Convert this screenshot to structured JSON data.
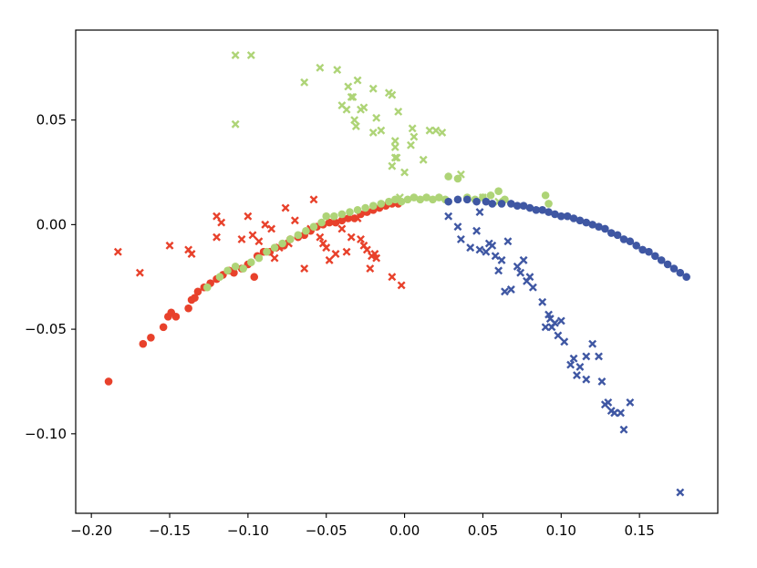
{
  "chart_data": {
    "type": "scatter",
    "title": "",
    "xlabel": "",
    "ylabel": "",
    "xlim": [
      -0.21,
      0.2
    ],
    "ylim": [
      -0.138,
      0.093
    ],
    "grid": false,
    "legend": null,
    "x_ticks": [
      "−0.20",
      "−0.15",
      "−0.10",
      "−0.05",
      "0.00",
      "0.05",
      "0.10",
      "0.15"
    ],
    "y_ticks": [
      "0.05",
      "0.00",
      "−0.05",
      "−0.10"
    ],
    "x_tick_values": [
      -0.2,
      -0.15,
      -0.1,
      -0.05,
      0.0,
      0.05,
      0.1,
      0.15
    ],
    "y_tick_values": [
      0.05,
      0.0,
      -0.05,
      -0.1
    ],
    "series": [
      {
        "color": "#e8412b",
        "marker": "circle",
        "points": [
          [
            -0.189,
            -0.075
          ],
          [
            -0.167,
            -0.057
          ],
          [
            -0.162,
            -0.054
          ],
          [
            -0.154,
            -0.049
          ],
          [
            -0.151,
            -0.044
          ],
          [
            -0.149,
            -0.042
          ],
          [
            -0.146,
            -0.044
          ],
          [
            -0.138,
            -0.04
          ],
          [
            -0.136,
            -0.036
          ],
          [
            -0.134,
            -0.035
          ],
          [
            -0.132,
            -0.032
          ],
          [
            -0.128,
            -0.03
          ],
          [
            -0.124,
            -0.028
          ],
          [
            -0.12,
            -0.026
          ],
          [
            -0.116,
            -0.024
          ],
          [
            -0.112,
            -0.022
          ],
          [
            -0.109,
            -0.023
          ],
          [
            -0.104,
            -0.021
          ],
          [
            -0.1,
            -0.019
          ],
          [
            -0.096,
            -0.025
          ],
          [
            -0.094,
            -0.015
          ],
          [
            -0.09,
            -0.013
          ],
          [
            -0.086,
            -0.013
          ],
          [
            -0.082,
            -0.011
          ],
          [
            -0.077,
            -0.01
          ],
          [
            -0.073,
            -0.007
          ],
          [
            -0.068,
            -0.006
          ],
          [
            -0.064,
            -0.005
          ],
          [
            -0.06,
            -0.003
          ],
          [
            -0.056,
            -0.001
          ],
          [
            -0.052,
            0.0
          ],
          [
            -0.048,
            0.001
          ],
          [
            -0.044,
            0.001
          ],
          [
            -0.04,
            0.002
          ],
          [
            -0.036,
            0.003
          ],
          [
            -0.032,
            0.003
          ],
          [
            -0.028,
            0.005
          ],
          [
            -0.024,
            0.006
          ],
          [
            -0.02,
            0.007
          ],
          [
            -0.016,
            0.008
          ],
          [
            -0.012,
            0.009
          ],
          [
            -0.008,
            0.01
          ],
          [
            -0.004,
            0.01
          ]
        ]
      },
      {
        "color": "#e8412b",
        "marker": "x",
        "points": [
          [
            -0.183,
            -0.013
          ],
          [
            -0.169,
            -0.023
          ],
          [
            -0.15,
            -0.01
          ],
          [
            -0.138,
            -0.012
          ],
          [
            -0.136,
            -0.014
          ],
          [
            -0.12,
            0.004
          ],
          [
            -0.12,
            -0.006
          ],
          [
            -0.117,
            0.001
          ],
          [
            -0.104,
            -0.007
          ],
          [
            -0.1,
            0.004
          ],
          [
            -0.097,
            -0.005
          ],
          [
            -0.093,
            -0.008
          ],
          [
            -0.089,
            0.0
          ],
          [
            -0.085,
            -0.002
          ],
          [
            -0.083,
            -0.016
          ],
          [
            -0.08,
            -0.011
          ],
          [
            -0.076,
            0.008
          ],
          [
            -0.074,
            -0.009
          ],
          [
            -0.07,
            0.002
          ],
          [
            -0.064,
            -0.021
          ],
          [
            -0.06,
            -0.002
          ],
          [
            -0.058,
            0.012
          ],
          [
            -0.054,
            -0.006
          ],
          [
            -0.052,
            -0.009
          ],
          [
            -0.05,
            -0.011
          ],
          [
            -0.048,
            -0.017
          ],
          [
            -0.044,
            -0.014
          ],
          [
            -0.04,
            -0.002
          ],
          [
            -0.037,
            -0.013
          ],
          [
            -0.034,
            -0.006
          ],
          [
            -0.03,
            0.003
          ],
          [
            -0.028,
            -0.007
          ],
          [
            -0.026,
            -0.01
          ],
          [
            -0.024,
            -0.012
          ],
          [
            -0.022,
            -0.021
          ],
          [
            -0.021,
            -0.015
          ],
          [
            -0.019,
            -0.014
          ],
          [
            -0.018,
            -0.016
          ],
          [
            -0.008,
            -0.025
          ],
          [
            -0.002,
            -0.029
          ]
        ]
      },
      {
        "color": "#aed477",
        "marker": "circle",
        "points": [
          [
            -0.126,
            -0.03
          ],
          [
            -0.118,
            -0.025
          ],
          [
            -0.113,
            -0.022
          ],
          [
            -0.108,
            -0.02
          ],
          [
            -0.103,
            -0.021
          ],
          [
            -0.098,
            -0.018
          ],
          [
            -0.093,
            -0.016
          ],
          [
            -0.088,
            -0.013
          ],
          [
            -0.083,
            -0.011
          ],
          [
            -0.078,
            -0.009
          ],
          [
            -0.073,
            -0.007
          ],
          [
            -0.068,
            -0.005
          ],
          [
            -0.063,
            -0.003
          ],
          [
            -0.058,
            -0.001
          ],
          [
            -0.053,
            0.001
          ],
          [
            -0.05,
            0.004
          ],
          [
            -0.045,
            0.004
          ],
          [
            -0.04,
            0.005
          ],
          [
            -0.035,
            0.006
          ],
          [
            -0.03,
            0.007
          ],
          [
            -0.025,
            0.008
          ],
          [
            -0.02,
            0.009
          ],
          [
            -0.015,
            0.01
          ],
          [
            -0.01,
            0.011
          ],
          [
            -0.006,
            0.012
          ],
          [
            -0.002,
            0.011
          ],
          [
            0.002,
            0.012
          ],
          [
            0.006,
            0.013
          ],
          [
            0.01,
            0.012
          ],
          [
            0.014,
            0.013
          ],
          [
            0.018,
            0.012
          ],
          [
            0.022,
            0.013
          ],
          [
            0.026,
            0.012
          ],
          [
            0.028,
            0.023
          ],
          [
            0.034,
            0.022
          ],
          [
            0.04,
            0.013
          ],
          [
            0.045,
            0.012
          ],
          [
            0.05,
            0.013
          ],
          [
            0.055,
            0.014
          ],
          [
            0.06,
            0.016
          ],
          [
            0.064,
            0.012
          ],
          [
            0.09,
            0.014
          ],
          [
            0.092,
            0.01
          ]
        ]
      },
      {
        "color": "#aed477",
        "marker": "x",
        "points": [
          [
            -0.108,
            0.081
          ],
          [
            -0.098,
            0.081
          ],
          [
            -0.108,
            0.048
          ],
          [
            -0.064,
            0.068
          ],
          [
            -0.054,
            0.075
          ],
          [
            -0.043,
            0.074
          ],
          [
            -0.04,
            0.057
          ],
          [
            -0.036,
            0.066
          ],
          [
            -0.037,
            0.055
          ],
          [
            -0.034,
            0.061
          ],
          [
            -0.033,
            0.061
          ],
          [
            -0.032,
            0.05
          ],
          [
            -0.03,
            0.069
          ],
          [
            -0.028,
            0.055
          ],
          [
            -0.031,
            0.047
          ],
          [
            -0.026,
            0.056
          ],
          [
            -0.02,
            0.065
          ],
          [
            -0.018,
            0.051
          ],
          [
            -0.02,
            0.044
          ],
          [
            -0.015,
            0.045
          ],
          [
            -0.01,
            0.063
          ],
          [
            -0.008,
            0.062
          ],
          [
            -0.006,
            0.037
          ],
          [
            -0.006,
            0.04
          ],
          [
            -0.005,
            0.032
          ],
          [
            -0.004,
            0.054
          ],
          [
            -0.006,
            0.032
          ],
          [
            -0.008,
            0.028
          ],
          [
            0.0,
            0.025
          ],
          [
            -0.003,
            0.013
          ],
          [
            0.005,
            0.046
          ],
          [
            0.006,
            0.042
          ],
          [
            0.004,
            0.038
          ],
          [
            0.012,
            0.031
          ],
          [
            0.016,
            0.045
          ],
          [
            0.02,
            0.045
          ],
          [
            0.024,
            0.044
          ],
          [
            0.036,
            0.024
          ],
          [
            0.05,
            0.013
          ],
          [
            0.06,
            0.011
          ]
        ]
      },
      {
        "color": "#3f57a3",
        "marker": "circle",
        "points": [
          [
            0.028,
            0.011
          ],
          [
            0.034,
            0.012
          ],
          [
            0.04,
            0.012
          ],
          [
            0.046,
            0.011
          ],
          [
            0.052,
            0.011
          ],
          [
            0.056,
            0.01
          ],
          [
            0.062,
            0.01
          ],
          [
            0.068,
            0.01
          ],
          [
            0.072,
            0.009
          ],
          [
            0.076,
            0.009
          ],
          [
            0.08,
            0.008
          ],
          [
            0.084,
            0.007
          ],
          [
            0.088,
            0.007
          ],
          [
            0.092,
            0.006
          ],
          [
            0.096,
            0.005
          ],
          [
            0.1,
            0.004
          ],
          [
            0.104,
            0.004
          ],
          [
            0.108,
            0.003
          ],
          [
            0.112,
            0.002
          ],
          [
            0.116,
            0.001
          ],
          [
            0.12,
            0.0
          ],
          [
            0.124,
            -0.001
          ],
          [
            0.128,
            -0.002
          ],
          [
            0.132,
            -0.004
          ],
          [
            0.136,
            -0.005
          ],
          [
            0.14,
            -0.007
          ],
          [
            0.144,
            -0.008
          ],
          [
            0.148,
            -0.01
          ],
          [
            0.152,
            -0.012
          ],
          [
            0.156,
            -0.013
          ],
          [
            0.16,
            -0.015
          ],
          [
            0.164,
            -0.017
          ],
          [
            0.168,
            -0.019
          ],
          [
            0.172,
            -0.021
          ],
          [
            0.176,
            -0.023
          ],
          [
            0.18,
            -0.025
          ]
        ]
      },
      {
        "color": "#3f57a3",
        "marker": "x",
        "points": [
          [
            0.028,
            0.004
          ],
          [
            0.034,
            -0.001
          ],
          [
            0.036,
            -0.007
          ],
          [
            0.042,
            -0.011
          ],
          [
            0.046,
            -0.003
          ],
          [
            0.048,
            0.006
          ],
          [
            0.048,
            -0.012
          ],
          [
            0.052,
            -0.013
          ],
          [
            0.054,
            -0.009
          ],
          [
            0.056,
            -0.01
          ],
          [
            0.058,
            -0.015
          ],
          [
            0.06,
            -0.022
          ],
          [
            0.062,
            -0.017
          ],
          [
            0.064,
            -0.032
          ],
          [
            0.066,
            -0.008
          ],
          [
            0.068,
            -0.031
          ],
          [
            0.072,
            -0.02
          ],
          [
            0.074,
            -0.023
          ],
          [
            0.076,
            -0.017
          ],
          [
            0.078,
            -0.027
          ],
          [
            0.08,
            -0.025
          ],
          [
            0.082,
            -0.03
          ],
          [
            0.088,
            -0.037
          ],
          [
            0.09,
            -0.049
          ],
          [
            0.092,
            -0.043
          ],
          [
            0.093,
            -0.045
          ],
          [
            0.094,
            -0.049
          ],
          [
            0.096,
            -0.047
          ],
          [
            0.098,
            -0.053
          ],
          [
            0.1,
            -0.046
          ],
          [
            0.102,
            -0.056
          ],
          [
            0.106,
            -0.067
          ],
          [
            0.108,
            -0.064
          ],
          [
            0.11,
            -0.072
          ],
          [
            0.112,
            -0.068
          ],
          [
            0.116,
            -0.063
          ],
          [
            0.116,
            -0.074
          ],
          [
            0.12,
            -0.057
          ],
          [
            0.124,
            -0.063
          ],
          [
            0.126,
            -0.075
          ],
          [
            0.128,
            -0.086
          ],
          [
            0.13,
            -0.085
          ],
          [
            0.132,
            -0.089
          ],
          [
            0.134,
            -0.09
          ],
          [
            0.138,
            -0.09
          ],
          [
            0.14,
            -0.098
          ],
          [
            0.144,
            -0.085
          ],
          [
            0.176,
            -0.128
          ]
        ]
      }
    ]
  }
}
